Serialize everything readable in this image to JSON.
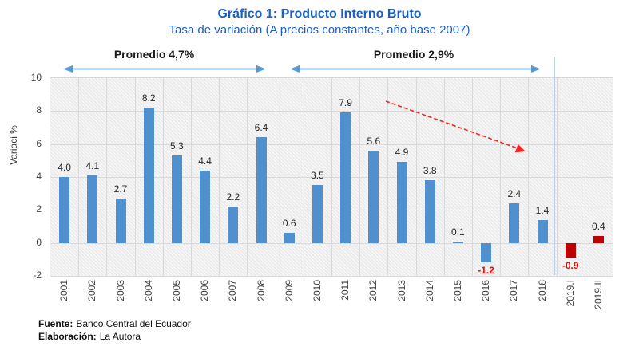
{
  "header": {
    "title": "Gráfico 1: Producto Interno Bruto",
    "subtitle": "Tasa de variación (A precios constantes, año base 2007)"
  },
  "chart_data": {
    "type": "bar",
    "title": "Gráfico 1: Producto Interno Bruto",
    "subtitle": "Tasa de variación (A precios constantes, año base 2007)",
    "ylabel": "Variaci %",
    "xlabel": "",
    "ylim": [
      -2,
      10
    ],
    "ytick_step": 2,
    "grid": true,
    "categories": [
      "2001",
      "2002",
      "2003",
      "2004",
      "2005",
      "2006",
      "2007",
      "2008",
      "2009",
      "2010",
      "2011",
      "2012",
      "2013",
      "2014",
      "2015",
      "2016",
      "2017",
      "2018",
      "2019.I",
      "2019.II"
    ],
    "values": [
      4.0,
      4.1,
      2.7,
      8.2,
      5.3,
      4.4,
      2.2,
      6.4,
      0.6,
      3.5,
      7.9,
      5.6,
      4.9,
      3.8,
      0.1,
      -1.2,
      2.4,
      1.4,
      -0.9,
      0.4
    ],
    "bar_colors": [
      "blue",
      "blue",
      "blue",
      "blue",
      "blue",
      "blue",
      "blue",
      "blue",
      "blue",
      "blue",
      "blue",
      "blue",
      "blue",
      "blue",
      "blue",
      "blue",
      "blue",
      "blue",
      "red",
      "red"
    ],
    "negative_value_labels_red": true,
    "annotations": [
      {
        "type": "span-arrow",
        "label": "Promedio 4,7%",
        "from_category": "2001",
        "to_category": "2008"
      },
      {
        "type": "span-arrow",
        "label": "Promedio 2,9%",
        "from_category": "2009",
        "to_category": "2018"
      },
      {
        "type": "trend-arrow",
        "style": "red-dashed",
        "from_category": "2012",
        "to_category": "2017",
        "direction": "declining"
      },
      {
        "type": "separator-line",
        "between": [
          "2018",
          "2019.I"
        ]
      }
    ]
  },
  "colors": {
    "title_blue": "#1A5FC4",
    "bar_blue": "#5090CE",
    "bar_red": "#C00000",
    "value_label": "#262626",
    "negative_label_red": "#FF0000",
    "annotation_arrow_blue": "#5B9BD5",
    "trend_arrow_red": "#FF2020",
    "separator_blue": "#9DC3E6"
  },
  "footer": {
    "source_label": "Fuente:",
    "source_value": "Banco Central del Ecuador",
    "elaboration_label": "Elaboración:",
    "elaboration_value": "La Autora"
  }
}
